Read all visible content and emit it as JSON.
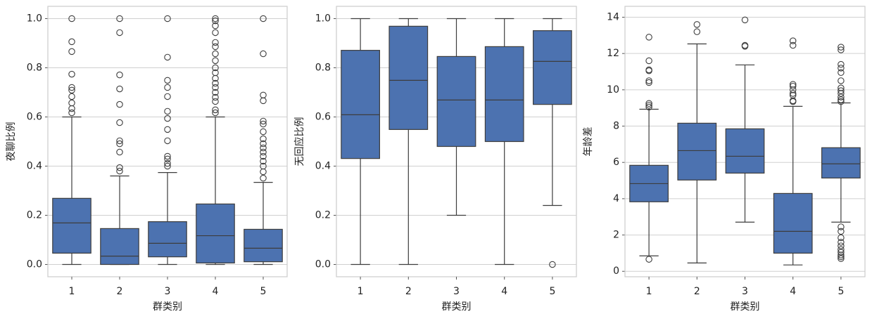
{
  "chart_data": [
    {
      "type": "box",
      "xlabel": "群类别",
      "ylabel": "夜聊比例",
      "color": "#4c72b0",
      "grid": true,
      "categories": [
        "1",
        "2",
        "3",
        "4",
        "5"
      ],
      "ylim": [
        -0.05,
        1.05
      ],
      "yticks": [
        {
          "value": 0,
          "label": "0.0"
        },
        0.2,
        0.4,
        0.6,
        0.8,
        {
          "value": 1,
          "label": "1.0"
        }
      ],
      "boxes": [
        {
          "whislo": 0,
          "q1": 0.046,
          "med": 0.169,
          "q3": 0.269,
          "whishi": 0.6,
          "fliers": [
            1.0,
            0.906,
            0.866,
            0.774,
            0.72,
            0.709,
            0.683,
            0.657,
            0.634,
            0.617
          ]
        },
        {
          "whislo": 0,
          "q1": 0,
          "med": 0.034,
          "q3": 0.146,
          "whishi": 0.36,
          "fliers": [
            1.0,
            0.943,
            0.771,
            0.714,
            0.651,
            0.577,
            0.503,
            0.491,
            0.457,
            0.394,
            0.38
          ]
        },
        {
          "whislo": 0,
          "q1": 0.031,
          "med": 0.086,
          "q3": 0.174,
          "whishi": 0.374,
          "fliers": [
            1.0,
            0.843,
            0.749,
            0.72,
            0.683,
            0.623,
            0.594,
            0.549,
            0.503,
            0.44,
            0.429,
            0.411,
            0.4
          ]
        },
        {
          "whislo": 0,
          "q1": 0.006,
          "med": 0.117,
          "q3": 0.246,
          "whishi": 0.6,
          "fliers": [
            1.0,
            0.991,
            0.971,
            0.943,
            0.903,
            0.886,
            0.857,
            0.829,
            0.8,
            0.78,
            0.757,
            0.737,
            0.72,
            0.7,
            0.68,
            0.663,
            0.629,
            0.617
          ]
        },
        {
          "whislo": 0,
          "q1": 0.011,
          "med": 0.066,
          "q3": 0.143,
          "whishi": 0.334,
          "fliers": [
            1.0,
            0.857,
            0.689,
            0.666,
            0.583,
            0.571,
            0.54,
            0.511,
            0.491,
            0.474,
            0.457,
            0.44,
            0.42,
            0.4,
            0.377,
            0.351
          ]
        }
      ]
    },
    {
      "type": "box",
      "xlabel": "群类别",
      "ylabel": "无回应比例",
      "color": "#4c72b0",
      "grid": true,
      "categories": [
        "1",
        "2",
        "3",
        "4",
        "5"
      ],
      "ylim": [
        -0.05,
        1.05
      ],
      "yticks": [
        {
          "value": 0,
          "label": "0.0"
        },
        0.2,
        0.4,
        0.6,
        0.8,
        {
          "value": 1,
          "label": "1.0"
        }
      ],
      "boxes": [
        {
          "whislo": 0,
          "q1": 0.431,
          "med": 0.609,
          "q3": 0.871,
          "whishi": 1.0,
          "fliers": []
        },
        {
          "whislo": 0,
          "q1": 0.549,
          "med": 0.749,
          "q3": 0.969,
          "whishi": 1.0,
          "fliers": []
        },
        {
          "whislo": 0.2,
          "q1": 0.48,
          "med": 0.669,
          "q3": 0.846,
          "whishi": 1.0,
          "fliers": []
        },
        {
          "whislo": 0,
          "q1": 0.5,
          "med": 0.669,
          "q3": 0.886,
          "whishi": 1.0,
          "fliers": []
        },
        {
          "whislo": 0.24,
          "q1": 0.651,
          "med": 0.826,
          "q3": 0.951,
          "whishi": 1.0,
          "fliers": [
            0
          ]
        }
      ]
    },
    {
      "type": "box",
      "xlabel": "群类别",
      "ylabel": "年龄差",
      "color": "#4c72b0",
      "grid": true,
      "categories": [
        "1",
        "2",
        "3",
        "4",
        "5"
      ],
      "ylim": [
        -0.3,
        14.6
      ],
      "yticks": [
        0,
        2,
        4,
        6,
        8,
        10,
        12,
        14
      ],
      "boxes": [
        {
          "whislo": 0.85,
          "q1": 3.83,
          "med": 4.83,
          "q3": 5.84,
          "whishi": 8.93,
          "fliers": [
            0.66,
            12.9,
            11.6,
            11.1,
            11.05,
            10.5,
            10.4,
            9.25,
            9.15,
            9.05
          ]
        },
        {
          "whislo": 0.46,
          "q1": 5.03,
          "med": 6.65,
          "q3": 8.16,
          "whishi": 12.53,
          "fliers": [
            13.6,
            13.2
          ]
        },
        {
          "whislo": 2.71,
          "q1": 5.41,
          "med": 6.34,
          "q3": 7.85,
          "whishi": 11.37,
          "fliers": [
            13.85,
            12.45,
            12.4
          ]
        },
        {
          "whislo": 0.35,
          "q1": 1.0,
          "med": 2.2,
          "q3": 4.29,
          "whishi": 9.09,
          "fliers": [
            12.7,
            12.45,
            10.3,
            10.2,
            10.0,
            9.8,
            9.7,
            9.4,
            9.35
          ]
        },
        {
          "whislo": 2.71,
          "q1": 5.14,
          "med": 5.92,
          "q3": 6.81,
          "whishi": 9.28,
          "fliers": [
            12.35,
            12.2,
            11.4,
            11.2,
            10.95,
            10.5,
            10.1,
            9.95,
            9.8,
            9.6,
            9.45,
            9.35,
            2.45,
            2.2,
            1.85,
            1.6,
            1.4,
            1.2,
            1.05,
            0.9,
            0.8,
            0.7
          ]
        }
      ]
    }
  ]
}
